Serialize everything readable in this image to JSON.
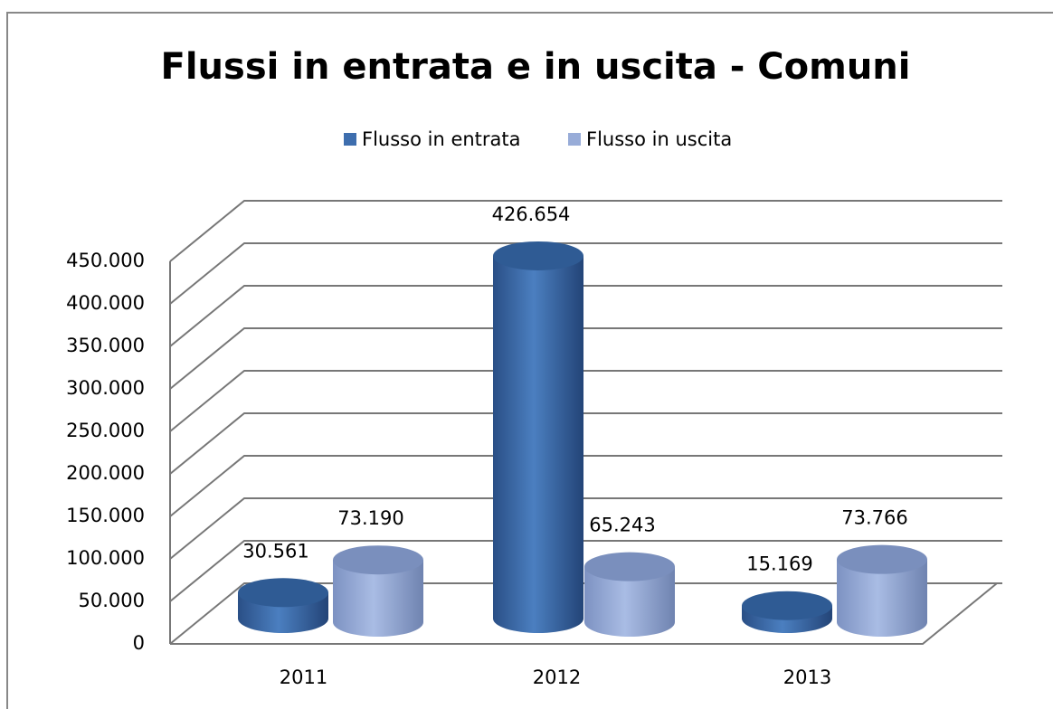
{
  "chart_data": {
    "type": "bar",
    "title": "Flussi in entrata e in uscita - Comuni",
    "categories": [
      "2011",
      "2012",
      "2013"
    ],
    "series": [
      {
        "name": "Flusso in entrata",
        "color": "#3e6eae",
        "values": [
          30561,
          426654,
          15169
        ],
        "value_labels": [
          "30.561",
          "426.654",
          "15.169"
        ]
      },
      {
        "name": "Flusso in uscita",
        "color": "#98acd8",
        "values": [
          73190,
          65243,
          73766
        ],
        "value_labels": [
          "73.190",
          "65.243",
          "73.766"
        ]
      }
    ],
    "ylim": [
      0,
      450000
    ],
    "yticks": [
      0,
      {
        "value": 50000,
        "label": "50.000"
      },
      {
        "value": 100000,
        "label": "100.000"
      },
      {
        "value": 150000,
        "label": "150.000"
      },
      {
        "value": 200000,
        "label": "200.000"
      },
      {
        "value": 250000,
        "label": "250.000"
      },
      {
        "value": 300000,
        "label": "300.000"
      },
      {
        "value": 350000,
        "label": "350.000"
      },
      {
        "value": 400000,
        "label": "400.000"
      },
      {
        "value": 450000,
        "label": "450.000"
      }
    ],
    "grid": true,
    "legend": "top"
  }
}
